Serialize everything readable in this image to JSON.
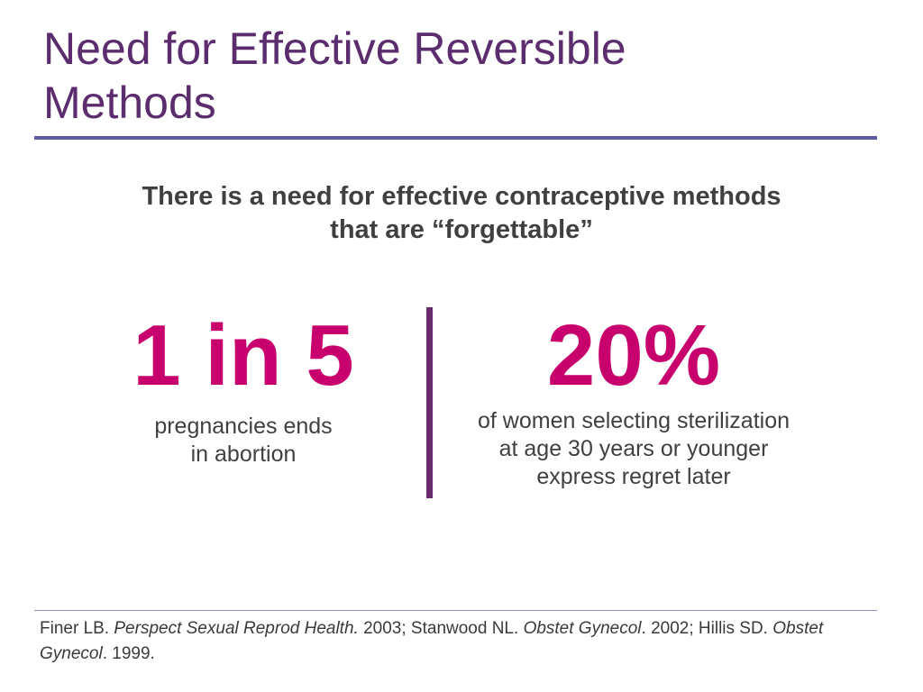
{
  "slide": {
    "title_line1": "Need for Effective Reversible",
    "title_line2": "Methods",
    "subtitle_line1": "There is a need for effective contraceptive methods",
    "subtitle_line2": "that are “forgettable”"
  },
  "stats": {
    "left": {
      "value": "1 in 5",
      "description": "pregnancies ends\nin abortion"
    },
    "right": {
      "value": "20%",
      "description": "of women selecting sterilization\nat age 30 years or younger\nexpress regret later"
    }
  },
  "references": {
    "r1_author": "Finer LB. ",
    "r1_journal": "Perspect Sexual Reprod Health.",
    "r1_year": " 2003; ",
    "r2_author": "Stanwood NL. ",
    "r2_journal": "Obstet Gynecol",
    "r2_year": ". 2002; ",
    "r3_author": "Hillis SD. ",
    "r3_journal": "Obstet Gynecol",
    "r3_year": ". 1999."
  },
  "colors": {
    "title": "#5b2d6e",
    "accent": "#c8006e",
    "divider": "#6b2c6e",
    "rule": "#5b5ba8",
    "text": "#404040"
  }
}
